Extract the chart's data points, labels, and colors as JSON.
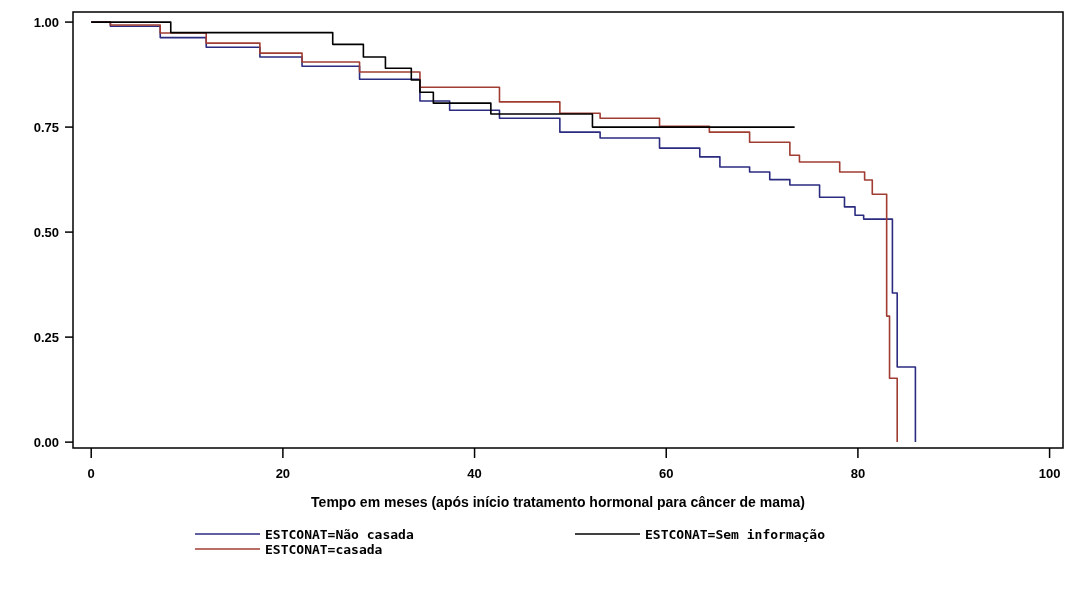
{
  "chart_data": {
    "type": "step",
    "xlabel": "Tempo em meses (após início tratamento hormonal para câncer de mama)",
    "xlim": [
      -1.9,
      101.4
    ],
    "xticks": [
      0,
      20,
      40,
      60,
      80,
      100
    ],
    "ylim": [
      -0.014,
      1.024
    ],
    "yticks": [
      {
        "value": 0,
        "label": "0.00"
      },
      {
        "value": 0.25,
        "label": "0.25"
      },
      {
        "value": 0.5,
        "label": "0.50"
      },
      {
        "value": 0.75,
        "label": "0.75"
      },
      {
        "value": 1,
        "label": "1.00"
      }
    ],
    "grid": false,
    "legend": "bottom",
    "marker": "none",
    "line_style": "solid",
    "series": [
      {
        "name": "ESTCONAT=Não casada",
        "color": "#2b2b80",
        "x": [
          0,
          2,
          7.2,
          12,
          17.6,
          22,
          28,
          34.3,
          37.4,
          42.6,
          48.9,
          53.1,
          59.3,
          63.5,
          65.6,
          68.7,
          70.8,
          72.9,
          76,
          78.6,
          79.7,
          80.6,
          83.6,
          84.1,
          86
        ],
        "values": [
          1,
          0.99,
          0.963,
          0.94,
          0.917,
          0.895,
          0.864,
          0.812,
          0.79,
          0.771,
          0.738,
          0.724,
          0.7,
          0.679,
          0.655,
          0.643,
          0.625,
          0.612,
          0.583,
          0.56,
          0.54,
          0.531,
          0.355,
          0.179,
          0
        ]
      },
      {
        "name": "ESTCONAT=casada",
        "color": "#a03c32",
        "x": [
          0,
          2,
          7.2,
          12,
          17.6,
          22,
          28,
          34.3,
          42.6,
          48.9,
          53.1,
          59.3,
          64.5,
          68.7,
          72.9,
          73.9,
          78.1,
          80.7,
          81.5,
          83,
          83.3,
          84.1
        ],
        "values": [
          1,
          0.993,
          0.974,
          0.95,
          0.926,
          0.905,
          0.881,
          0.845,
          0.81,
          0.783,
          0.771,
          0.752,
          0.738,
          0.714,
          0.683,
          0.667,
          0.643,
          0.624,
          0.59,
          0.3,
          0.152,
          0
        ]
      },
      {
        "name": "ESTCONAT=Sem informação",
        "color": "#000000",
        "x": [
          0,
          8.3,
          25.2,
          28.4,
          30.7,
          33.4,
          34.3,
          35.7,
          41.7,
          52.3,
          73.4
        ],
        "values": [
          1,
          0.975,
          0.947,
          0.917,
          0.89,
          0.862,
          0.833,
          0.807,
          0.781,
          0.75,
          0.75
        ]
      }
    ]
  }
}
